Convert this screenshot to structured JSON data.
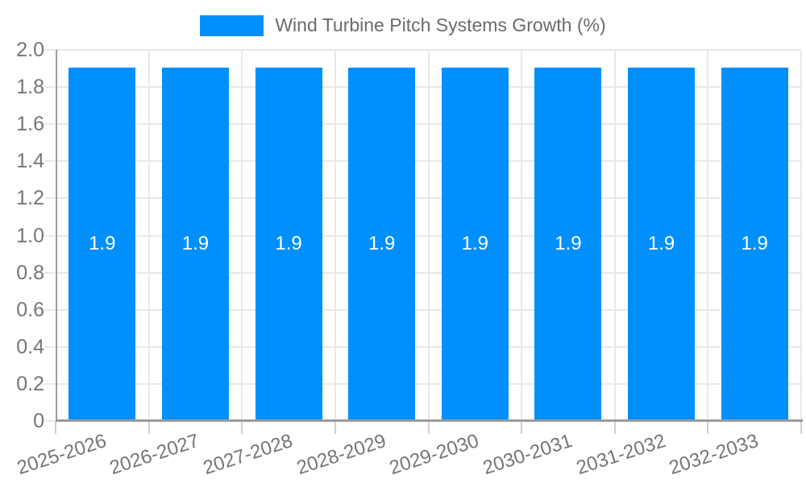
{
  "chart_data": {
    "type": "bar",
    "title": "Wind Turbine Pitch Systems Growth (%)",
    "legend_position": "top",
    "categories": [
      "2025-2026",
      "2026-2027",
      "2027-2028",
      "2028-2029",
      "2029-2030",
      "2030-2031",
      "2031-2032",
      "2032-2033"
    ],
    "values": [
      1.9,
      1.9,
      1.9,
      1.9,
      1.9,
      1.9,
      1.9,
      1.9
    ],
    "bar_value_labels": [
      "1.9",
      "1.9",
      "1.9",
      "1.9",
      "1.9",
      "1.9",
      "1.9",
      "1.9"
    ],
    "xlabel": "",
    "ylabel": "",
    "ylim": [
      0,
      2.0
    ],
    "y_tick_labels": [
      "0",
      "0.2",
      "0.4",
      "0.6",
      "0.8",
      "1.0",
      "1.2",
      "1.4",
      "1.6",
      "1.8",
      "2.0"
    ],
    "x_tick_rotation_deg": -18,
    "grid": "horizontal-and-vertical",
    "colors": {
      "bar": "#008FFB",
      "grid": "#e8e8e8",
      "axis": "#9b9b9b",
      "tick": "#cfcfcf",
      "tick_label": "#757575",
      "title_text": "#6b6b6b",
      "bar_label": "#ffffff",
      "background": "#ffffff"
    }
  }
}
